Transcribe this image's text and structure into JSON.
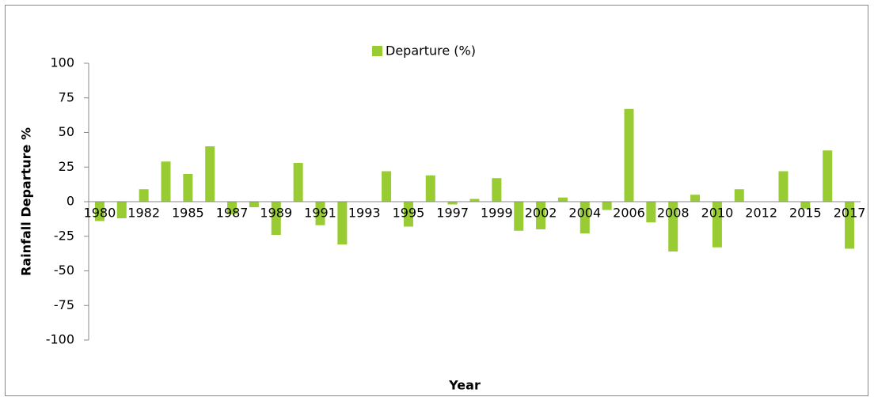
{
  "chart_data": {
    "type": "bar",
    "categories": [
      "1980",
      null,
      "1982",
      null,
      "1985",
      null,
      "1987",
      null,
      "1989",
      null,
      "1991",
      null,
      "1993",
      null,
      "1995",
      null,
      "1997",
      null,
      "1999",
      null,
      "2002",
      null,
      "2004",
      null,
      "2006",
      null,
      "2008",
      null,
      "2010",
      null,
      "2012",
      null,
      "2015",
      null,
      "2017"
    ],
    "series": [
      {
        "name": "Departure (%)",
        "color": "#99cc33",
        "values": [
          -14,
          -12,
          9,
          29,
          20,
          40,
          -9,
          -4,
          -24,
          28,
          -17,
          -31,
          0,
          22,
          -18,
          19,
          -2,
          2,
          17,
          -21,
          -20,
          3,
          -23,
          -6,
          67,
          -15,
          -36,
          5,
          -33,
          9,
          0,
          22,
          -5,
          37,
          -34
        ]
      }
    ],
    "ylim": [
      -100,
      100
    ],
    "yticks": [
      -100,
      -75,
      -50,
      -25,
      0,
      25,
      50,
      75,
      100
    ],
    "xlabel": "Year",
    "ylabel": "Rainfall Departure %",
    "legend": "top",
    "grid": false
  }
}
